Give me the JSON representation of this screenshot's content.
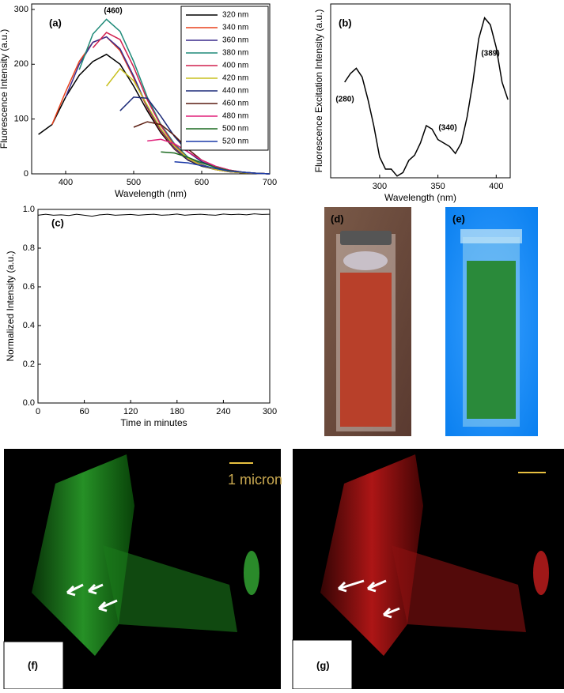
{
  "chart_data": [
    {
      "type": "line",
      "panel": "(a)",
      "annotations": [
        "(460)"
      ],
      "x_label": "Wavelength (nm)",
      "y_label": "Fluorescence Intensity (a.u.)",
      "x": [
        360,
        380,
        400,
        420,
        440,
        460,
        480,
        500,
        520,
        540,
        560,
        580,
        600,
        620,
        640,
        660,
        680,
        700
      ],
      "xlim": [
        350,
        700
      ],
      "xticks": [
        400,
        500,
        600,
        700
      ],
      "ylim": [
        0,
        310
      ],
      "yticks": [
        0,
        100,
        200,
        300
      ],
      "legend": "upper right",
      "series": [
        {
          "name": "320 nm",
          "color": "#000000",
          "values": [
            72,
            90,
            140,
            180,
            205,
            218,
            200,
            160,
            115,
            75,
            45,
            25,
            14,
            8,
            4,
            2,
            1,
            0
          ]
        },
        {
          "name": "340 nm",
          "color": "#e8401c",
          "values": [
            null,
            90,
            150,
            205,
            240,
            250,
            225,
            175,
            120,
            78,
            46,
            26,
            15,
            8,
            4,
            2,
            1,
            0
          ]
        },
        {
          "name": "360 nm",
          "color": "#3a2a8c",
          "values": [
            null,
            null,
            140,
            200,
            240,
            250,
            228,
            178,
            122,
            80,
            47,
            26,
            15,
            8,
            4,
            2,
            1,
            0
          ]
        },
        {
          "name": "380 nm",
          "color": "#1e8a78",
          "values": [
            null,
            null,
            null,
            190,
            255,
            282,
            260,
            205,
            140,
            90,
            55,
            30,
            17,
            9,
            5,
            2,
            1,
            0
          ]
        },
        {
          "name": "400 nm",
          "color": "#d0204e",
          "values": [
            null,
            null,
            null,
            null,
            230,
            258,
            245,
            195,
            135,
            88,
            52,
            28,
            16,
            8,
            4,
            2,
            1,
            0
          ]
        },
        {
          "name": "420 nm",
          "color": "#c8c020",
          "values": [
            null,
            null,
            null,
            null,
            null,
            160,
            192,
            170,
            125,
            82,
            50,
            28,
            15,
            8,
            4,
            2,
            1,
            0
          ]
        },
        {
          "name": "440 nm",
          "color": "#1c2a78",
          "values": [
            null,
            null,
            null,
            null,
            null,
            null,
            115,
            140,
            138,
            105,
            68,
            40,
            22,
            12,
            6,
            3,
            1,
            0
          ]
        },
        {
          "name": "460 nm",
          "color": "#5a1c10",
          "values": [
            null,
            null,
            null,
            null,
            null,
            null,
            null,
            85,
            95,
            90,
            70,
            45,
            25,
            14,
            7,
            3,
            1,
            0
          ]
        },
        {
          "name": "480 nm",
          "color": "#e0207a",
          "values": [
            null,
            null,
            null,
            null,
            null,
            null,
            null,
            null,
            60,
            63,
            55,
            40,
            25,
            14,
            7,
            3,
            1,
            0
          ]
        },
        {
          "name": "500 nm",
          "color": "#1c6a20",
          "values": [
            null,
            null,
            null,
            null,
            null,
            null,
            null,
            null,
            null,
            40,
            38,
            30,
            20,
            12,
            6,
            3,
            1,
            0
          ]
        },
        {
          "name": "520 nm",
          "color": "#1c3aa8",
          "values": [
            null,
            null,
            null,
            null,
            null,
            null,
            null,
            null,
            null,
            null,
            22,
            20,
            15,
            10,
            5,
            3,
            1,
            0
          ]
        }
      ]
    },
    {
      "type": "line",
      "panel": "(b)",
      "annotations": [
        "(280)",
        "(340)",
        "(389)"
      ],
      "x_label": "Wavelength (nm)",
      "y_label": "Fluorescence Excitation Intensity (a.u.)",
      "x": [
        270,
        275,
        280,
        285,
        290,
        295,
        300,
        305,
        310,
        315,
        320,
        325,
        330,
        335,
        340,
        345,
        350,
        355,
        360,
        365,
        370,
        375,
        380,
        385,
        390,
        395,
        400,
        405,
        410
      ],
      "xlim": [
        258,
        412
      ],
      "xticks": [
        300,
        350,
        400
      ],
      "ylim": [
        0,
        1
      ],
      "yticks": [],
      "series": [
        {
          "name": null,
          "color": "#000000",
          "values": [
            0.55,
            0.6,
            0.63,
            0.58,
            0.45,
            0.3,
            0.12,
            0.05,
            0.05,
            0.01,
            0.03,
            0.1,
            0.13,
            0.2,
            0.3,
            0.28,
            0.22,
            0.2,
            0.18,
            0.14,
            0.2,
            0.35,
            0.55,
            0.8,
            0.92,
            0.88,
            0.75,
            0.55,
            0.45
          ]
        }
      ]
    },
    {
      "type": "line",
      "panel": "(c)",
      "annotations": [],
      "x_label": "Time in minutes",
      "y_label": "Normalized Intensity (a.u.)",
      "x": [
        0,
        10,
        20,
        30,
        40,
        50,
        60,
        70,
        80,
        90,
        100,
        110,
        120,
        130,
        140,
        150,
        160,
        170,
        180,
        190,
        200,
        210,
        220,
        230,
        240,
        250,
        260,
        270,
        280,
        290,
        300
      ],
      "xlim": [
        0,
        300
      ],
      "xticks": [
        0,
        60,
        120,
        180,
        240,
        300
      ],
      "ylim": [
        0,
        1
      ],
      "yticks": [
        {
          "value": 0,
          "label": "0.0"
        },
        0.2,
        0.4,
        0.6,
        0.8,
        {
          "value": 1,
          "label": "1.0"
        }
      ],
      "series": [
        {
          "name": null,
          "color": "#000000",
          "values": [
            0.97,
            0.975,
            0.97,
            0.972,
            0.968,
            0.975,
            0.97,
            0.965,
            0.972,
            0.975,
            0.97,
            0.972,
            0.974,
            0.97,
            0.973,
            0.975,
            0.97,
            0.972,
            0.976,
            0.97,
            0.973,
            0.975,
            0.972,
            0.97,
            0.976,
            0.973,
            0.975,
            0.972,
            0.977,
            0.974,
            0.975
          ]
        }
      ]
    }
  ],
  "panels": {
    "d": "(d)",
    "e": "(e)",
    "f": "(f)",
    "g": "(g)",
    "scale_bar": "1 micron"
  }
}
